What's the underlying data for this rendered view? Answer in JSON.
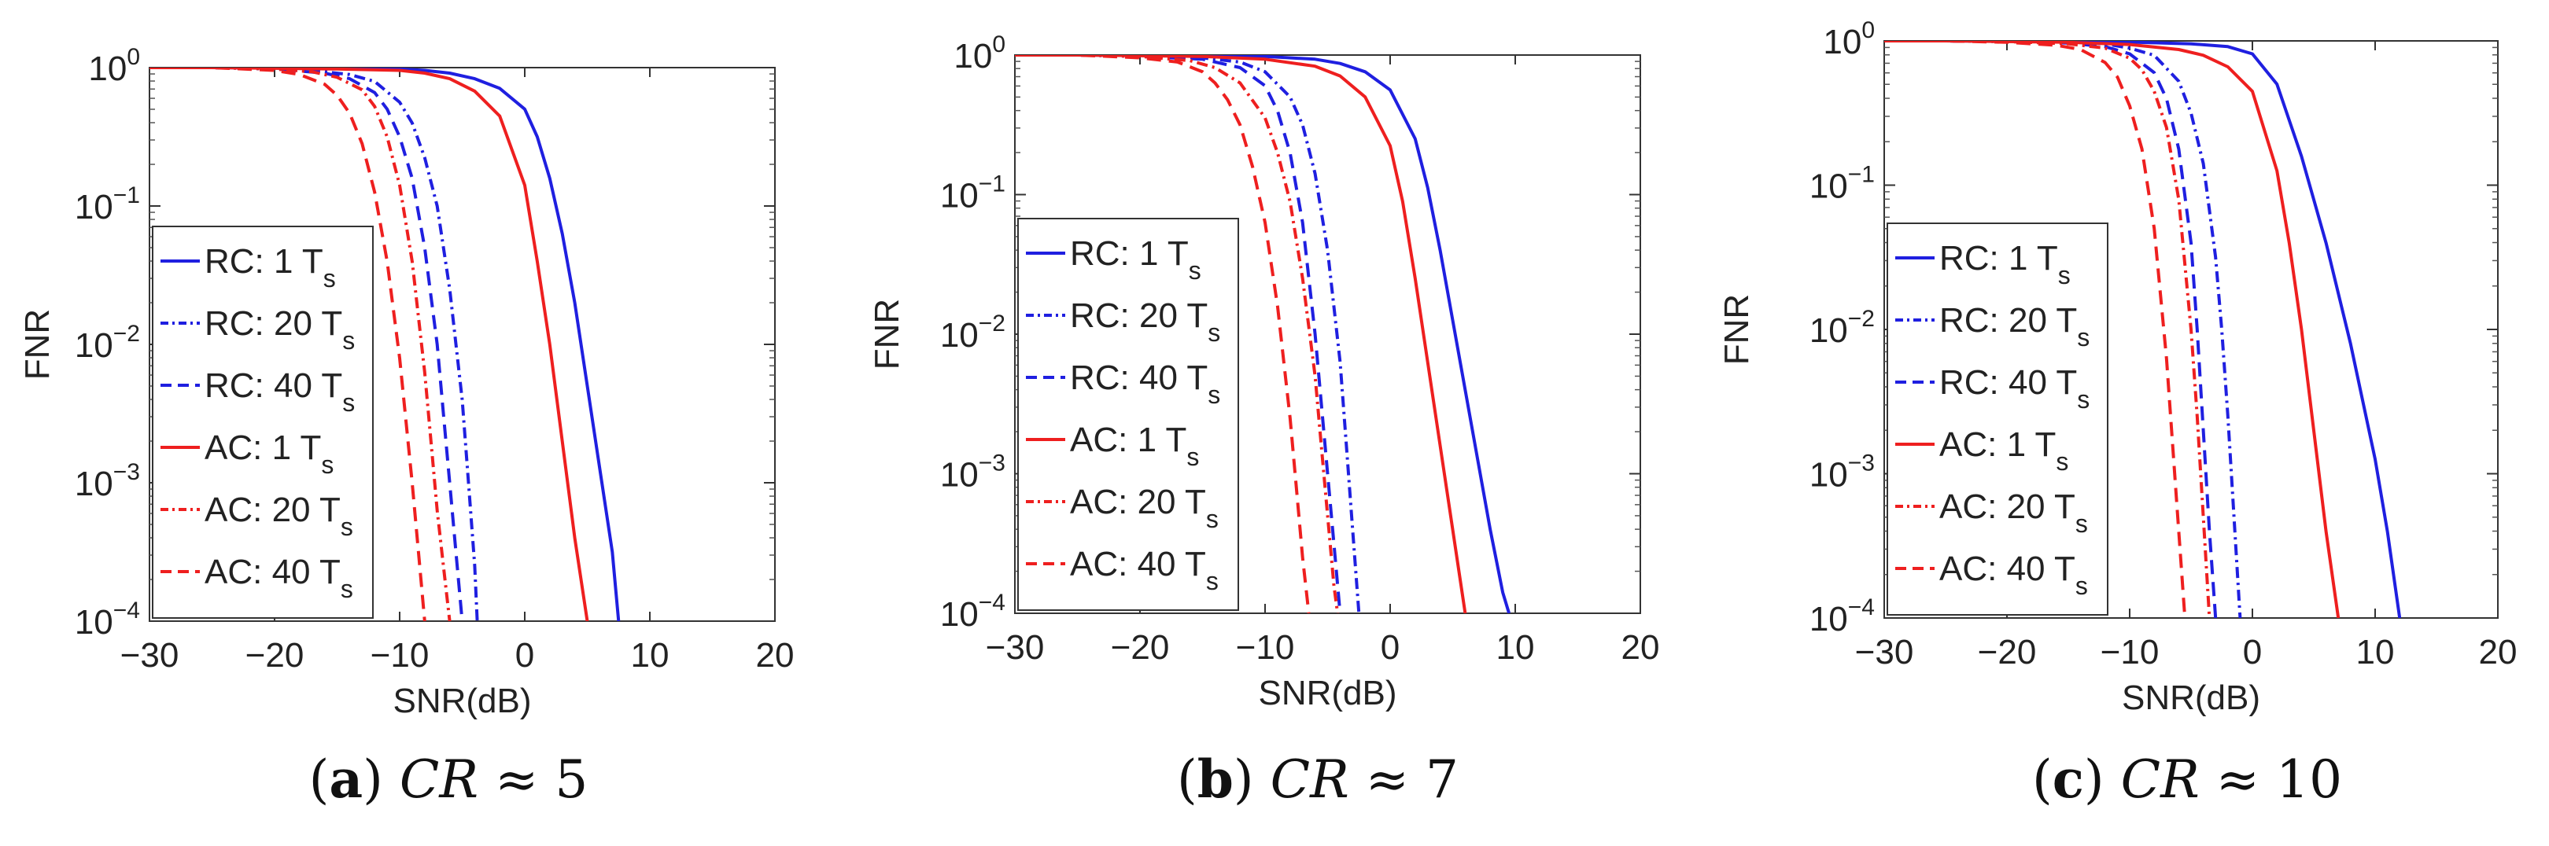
{
  "chart_data": [
    {
      "type": "line",
      "panel_label": "a",
      "caption": "CR ≈ 5",
      "caption_cr": "CR",
      "caption_rest": " ≈ 5",
      "xlabel": "SNR(dB)",
      "ylabel": "FNR",
      "xlim": [
        -30,
        20
      ],
      "ylim_log10": [
        -4,
        0
      ],
      "xticks": [
        -30,
        -20,
        -10,
        0,
        10,
        20
      ],
      "xtick_labels": [
        "−30",
        "−20",
        "−10",
        "0",
        "10",
        "20"
      ],
      "yticks_exp": [
        0,
        -1,
        -2,
        -3,
        -4
      ],
      "ytick_labels": [
        "10",
        "10",
        "10",
        "10",
        "10"
      ],
      "ytick_exponents": [
        "0",
        "−1",
        "−2",
        "−3",
        "−4"
      ],
      "legend_position": "bottom-left inside",
      "series": [
        {
          "name": "RC: 1 Ts",
          "label_main": "RC: 1 T",
          "label_sub": "s",
          "color": "#1f1fe0",
          "dash": "solid",
          "x": [
            -30,
            -25,
            -20,
            -15,
            -10,
            -8,
            -6,
            -4,
            -2,
            0,
            1,
            2,
            3,
            4,
            5,
            6,
            7,
            7.5
          ],
          "log10_y": [
            0,
            0,
            -0.003,
            -0.005,
            -0.01,
            -0.02,
            -0.04,
            -0.08,
            -0.15,
            -0.3,
            -0.5,
            -0.8,
            -1.2,
            -1.7,
            -2.3,
            -2.9,
            -3.5,
            -4
          ]
        },
        {
          "name": "RC: 20 Ts",
          "label_main": "RC: 20 T",
          "label_sub": "s",
          "color": "#1f1fe0",
          "dash": "dashdot",
          "x": [
            -30,
            -25,
            -20,
            -16,
            -14,
            -12,
            -10,
            -9,
            -8,
            -7,
            -6,
            -5,
            -4.5,
            -4,
            -3.8
          ],
          "log10_y": [
            0,
            0,
            -0.01,
            -0.03,
            -0.05,
            -0.1,
            -0.25,
            -0.4,
            -0.65,
            -1.0,
            -1.6,
            -2.4,
            -3.0,
            -3.6,
            -4
          ]
        },
        {
          "name": "RC: 40 Ts",
          "label_main": "RC: 40 T",
          "label_sub": "s",
          "color": "#1f1fe0",
          "dash": "dash",
          "x": [
            -30,
            -25,
            -20,
            -16,
            -14,
            -12,
            -11,
            -10,
            -9,
            -8,
            -7,
            -6.5,
            -6,
            -5.5,
            -5
          ],
          "log10_y": [
            0,
            0,
            -0.01,
            -0.04,
            -0.08,
            -0.18,
            -0.3,
            -0.5,
            -0.8,
            -1.3,
            -2.0,
            -2.5,
            -3.0,
            -3.5,
            -4
          ]
        },
        {
          "name": "AC: 1 Ts",
          "label_main": "AC: 1 T",
          "label_sub": "s",
          "color": "#ee1f1f",
          "dash": "solid",
          "x": [
            -30,
            -25,
            -20,
            -15,
            -10,
            -8,
            -6,
            -4,
            -2,
            0,
            1,
            2,
            3,
            4,
            5
          ],
          "log10_y": [
            0,
            0,
            -0.005,
            -0.01,
            -0.02,
            -0.04,
            -0.08,
            -0.17,
            -0.35,
            -0.85,
            -1.4,
            -2.0,
            -2.7,
            -3.4,
            -4
          ]
        },
        {
          "name": "AC: 20 Ts",
          "label_main": "AC: 20 T",
          "label_sub": "s",
          "color": "#ee1f1f",
          "dash": "dashdot",
          "x": [
            -30,
            -25,
            -20,
            -17,
            -15,
            -13,
            -12,
            -11,
            -10,
            -9,
            -8,
            -7.5,
            -7,
            -6.5,
            -6
          ],
          "log10_y": [
            0,
            0,
            -0.01,
            -0.03,
            -0.07,
            -0.16,
            -0.28,
            -0.5,
            -0.85,
            -1.4,
            -2.2,
            -2.7,
            -3.2,
            -3.6,
            -4
          ]
        },
        {
          "name": "AC: 40 Ts",
          "label_main": "AC: 40 T",
          "label_sub": "s",
          "color": "#ee1f1f",
          "dash": "dash",
          "x": [
            -30,
            -25,
            -20,
            -18,
            -16,
            -15,
            -14,
            -13,
            -12,
            -11,
            -10,
            -9,
            -8.5,
            -8
          ],
          "log10_y": [
            0,
            0,
            -0.02,
            -0.05,
            -0.12,
            -0.2,
            -0.33,
            -0.55,
            -0.9,
            -1.4,
            -2.1,
            -3.0,
            -3.5,
            -4
          ]
        }
      ]
    },
    {
      "type": "line",
      "panel_label": "b",
      "caption": "CR ≈ 7",
      "caption_cr": "CR",
      "caption_rest": " ≈ 7",
      "xlabel": "SNR(dB)",
      "ylabel": "FNR",
      "xlim": [
        -30,
        20
      ],
      "ylim_log10": [
        -4,
        0
      ],
      "xticks": [
        -30,
        -20,
        -10,
        0,
        10,
        20
      ],
      "xtick_labels": [
        "−30",
        "−20",
        "−10",
        "0",
        "10",
        "20"
      ],
      "yticks_exp": [
        0,
        -1,
        -2,
        -3,
        -4
      ],
      "ytick_labels": [
        "10",
        "10",
        "10",
        "10",
        "10"
      ],
      "ytick_exponents": [
        "0",
        "−1",
        "−2",
        "−3",
        "−4"
      ],
      "legend_position": "bottom-left inside",
      "series": [
        {
          "name": "RC: 1 Ts",
          "label_main": "RC: 1 T",
          "label_sub": "s",
          "color": "#1f1fe0",
          "dash": "solid",
          "x": [
            -30,
            -25,
            -20,
            -15,
            -10,
            -6,
            -4,
            -2,
            0,
            2,
            3,
            4,
            5,
            6,
            7,
            8,
            9,
            9.5
          ],
          "log10_y": [
            0,
            0,
            -0.003,
            -0.005,
            -0.01,
            -0.03,
            -0.06,
            -0.12,
            -0.25,
            -0.6,
            -0.95,
            -1.4,
            -1.9,
            -2.4,
            -2.9,
            -3.4,
            -3.85,
            -4
          ]
        },
        {
          "name": "RC: 20 Ts",
          "label_main": "RC: 20 T",
          "label_sub": "s",
          "color": "#1f1fe0",
          "dash": "dashdot",
          "x": [
            -30,
            -25,
            -20,
            -15,
            -12,
            -10,
            -8,
            -7,
            -6,
            -5,
            -4,
            -3.5,
            -3,
            -2.5
          ],
          "log10_y": [
            0,
            0,
            -0.01,
            -0.02,
            -0.05,
            -0.12,
            -0.3,
            -0.5,
            -0.85,
            -1.4,
            -2.2,
            -2.8,
            -3.4,
            -4
          ]
        },
        {
          "name": "RC: 40 Ts",
          "label_main": "RC: 40 T",
          "label_sub": "s",
          "color": "#1f1fe0",
          "dash": "dash",
          "x": [
            -30,
            -25,
            -20,
            -15,
            -12,
            -10,
            -9,
            -8,
            -7,
            -6,
            -5,
            -4.5,
            -4
          ],
          "log10_y": [
            0,
            0,
            -0.01,
            -0.03,
            -0.09,
            -0.22,
            -0.4,
            -0.7,
            -1.2,
            -2.0,
            -3.0,
            -3.5,
            -4
          ]
        },
        {
          "name": "AC: 1 Ts",
          "label_main": "AC: 1 T",
          "label_sub": "s",
          "color": "#ee1f1f",
          "dash": "solid",
          "x": [
            -30,
            -25,
            -20,
            -15,
            -10,
            -6,
            -4,
            -2,
            0,
            1,
            2,
            3,
            4,
            5,
            6
          ],
          "log10_y": [
            0,
            0,
            -0.005,
            -0.01,
            -0.03,
            -0.08,
            -0.15,
            -0.3,
            -0.65,
            -1.05,
            -1.6,
            -2.2,
            -2.8,
            -3.4,
            -4
          ]
        },
        {
          "name": "AC: 20 Ts",
          "label_main": "AC: 20 T",
          "label_sub": "s",
          "color": "#ee1f1f",
          "dash": "dashdot",
          "x": [
            -30,
            -25,
            -20,
            -16,
            -14,
            -12,
            -10,
            -9,
            -8,
            -7,
            -6,
            -5.5,
            -5,
            -4.5,
            -4.2
          ],
          "log10_y": [
            0,
            0,
            -0.01,
            -0.04,
            -0.09,
            -0.2,
            -0.45,
            -0.7,
            -1.05,
            -1.6,
            -2.3,
            -2.8,
            -3.3,
            -3.8,
            -4
          ]
        },
        {
          "name": "AC: 40 Ts",
          "label_main": "AC: 40 T",
          "label_sub": "s",
          "color": "#ee1f1f",
          "dash": "dash",
          "x": [
            -30,
            -25,
            -20,
            -17,
            -15,
            -14,
            -13,
            -12,
            -11,
            -10,
            -9,
            -8,
            -7.5,
            -7,
            -6.5
          ],
          "log10_y": [
            0,
            0,
            -0.02,
            -0.05,
            -0.12,
            -0.2,
            -0.32,
            -0.5,
            -0.8,
            -1.2,
            -1.8,
            -2.6,
            -3.1,
            -3.6,
            -4
          ]
        }
      ]
    },
    {
      "type": "line",
      "panel_label": "c",
      "caption": "CR ≈ 10",
      "caption_cr": "CR",
      "caption_rest": " ≈ 10",
      "xlabel": "SNR(dB)",
      "ylabel": "FNR",
      "xlim": [
        -30,
        20
      ],
      "ylim_log10": [
        -4,
        0
      ],
      "xticks": [
        -30,
        -20,
        -10,
        0,
        10,
        20
      ],
      "xtick_labels": [
        "−30",
        "−20",
        "−10",
        "0",
        "10",
        "20"
      ],
      "yticks_exp": [
        0,
        -1,
        -2,
        -3,
        -4
      ],
      "ytick_labels": [
        "10",
        "10",
        "10",
        "10",
        "10"
      ],
      "ytick_exponents": [
        "0",
        "−1",
        "−2",
        "−3",
        "−4"
      ],
      "legend_position": "bottom-left inside",
      "series": [
        {
          "name": "RC: 1 Ts",
          "label_main": "RC: 1 T",
          "label_sub": "s",
          "color": "#1f1fe0",
          "dash": "solid",
          "x": [
            -30,
            -25,
            -20,
            -15,
            -10,
            -5,
            -2,
            0,
            2,
            4,
            6,
            8,
            10,
            11,
            12
          ],
          "log10_y": [
            0,
            0,
            -0.002,
            -0.004,
            -0.008,
            -0.02,
            -0.04,
            -0.09,
            -0.3,
            -0.8,
            -1.4,
            -2.1,
            -2.9,
            -3.4,
            -4
          ]
        },
        {
          "name": "RC: 20 Ts",
          "label_main": "RC: 20 T",
          "label_sub": "s",
          "color": "#1f1fe0",
          "dash": "dashdot",
          "x": [
            -30,
            -25,
            -20,
            -15,
            -12,
            -10,
            -8,
            -6,
            -5,
            -4,
            -3,
            -2.5,
            -2,
            -1.5,
            -1
          ],
          "log10_y": [
            0,
            0,
            -0.005,
            -0.01,
            -0.02,
            -0.05,
            -0.1,
            -0.28,
            -0.5,
            -0.85,
            -1.5,
            -2.0,
            -2.6,
            -3.3,
            -4
          ]
        },
        {
          "name": "RC: 40 Ts",
          "label_main": "RC: 40 T",
          "label_sub": "s",
          "color": "#1f1fe0",
          "dash": "dash",
          "x": [
            -30,
            -25,
            -20,
            -15,
            -12,
            -10,
            -8,
            -7,
            -6,
            -5,
            -4.5,
            -4,
            -3.5,
            -3
          ],
          "log10_y": [
            0,
            0,
            -0.005,
            -0.015,
            -0.04,
            -0.09,
            -0.22,
            -0.4,
            -0.75,
            -1.4,
            -2.0,
            -2.7,
            -3.4,
            -4
          ]
        },
        {
          "name": "AC: 1 Ts",
          "label_main": "AC: 1 T",
          "label_sub": "s",
          "color": "#ee1f1f",
          "dash": "solid",
          "x": [
            -30,
            -25,
            -20,
            -15,
            -10,
            -6,
            -4,
            -2,
            0,
            2,
            3,
            4,
            5,
            6,
            7
          ],
          "log10_y": [
            0,
            0,
            -0.005,
            -0.01,
            -0.025,
            -0.06,
            -0.1,
            -0.18,
            -0.35,
            -0.9,
            -1.4,
            -2.0,
            -2.7,
            -3.4,
            -4
          ]
        },
        {
          "name": "AC: 20 Ts",
          "label_main": "AC: 20 T",
          "label_sub": "s",
          "color": "#ee1f1f",
          "dash": "dashdot",
          "x": [
            -30,
            -25,
            -20,
            -15,
            -12,
            -10,
            -9,
            -8,
            -7,
            -6,
            -5,
            -4.5,
            -4,
            -3.5
          ],
          "log10_y": [
            0,
            0,
            -0.005,
            -0.02,
            -0.05,
            -0.12,
            -0.2,
            -0.35,
            -0.6,
            -1.1,
            -2.0,
            -2.6,
            -3.3,
            -4
          ]
        },
        {
          "name": "AC: 40 Ts",
          "label_main": "AC: 40 T",
          "label_sub": "s",
          "color": "#ee1f1f",
          "dash": "dash",
          "x": [
            -30,
            -25,
            -20,
            -16,
            -14,
            -12,
            -11,
            -10,
            -9,
            -8,
            -7,
            -6.5,
            -6,
            -5.5
          ],
          "log10_y": [
            0,
            0,
            -0.01,
            -0.03,
            -0.06,
            -0.15,
            -0.25,
            -0.45,
            -0.75,
            -1.3,
            -2.2,
            -2.8,
            -3.4,
            -4
          ]
        }
      ]
    }
  ]
}
